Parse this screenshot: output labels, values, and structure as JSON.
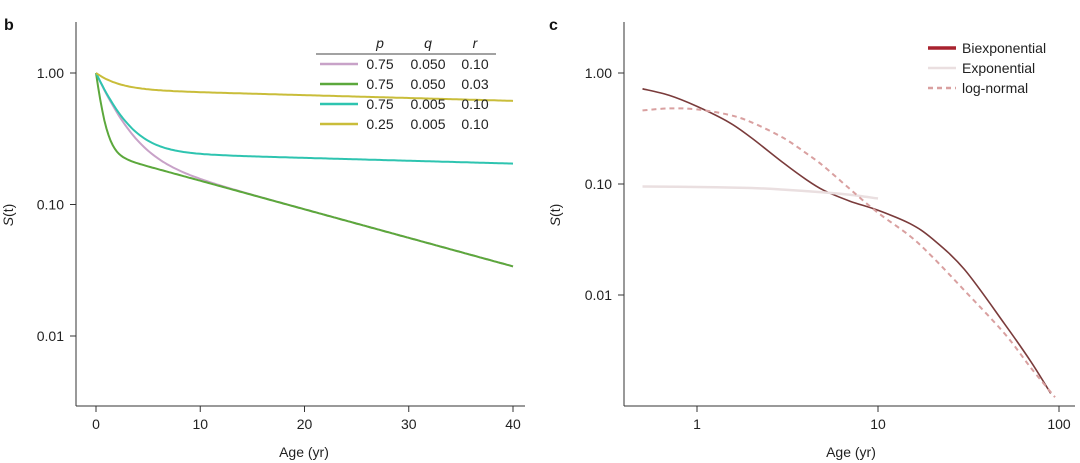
{
  "chart_data": [
    {
      "type": "line",
      "panel": "b",
      "title": "",
      "xlabel": "Age (yr)",
      "ylabel": "S(t)",
      "ylabel_italic_part": "S",
      "ylabel_rest": "(t)",
      "xlim": [
        0,
        40
      ],
      "ylim": [
        0.003,
        2.0
      ],
      "yscale": "log",
      "x_ticks": [
        0,
        10,
        20,
        30,
        40
      ],
      "x_tick_labels": [
        "0",
        "10",
        "20",
        "30",
        "40"
      ],
      "y_ticks": [
        1.0,
        0.1,
        0.01
      ],
      "y_tick_labels": [
        "1.00",
        "0.10",
        "0.01"
      ],
      "grid": false,
      "legend": {
        "placement": "top-right",
        "columns": [
          "p",
          "q",
          "r"
        ],
        "rows": [
          {
            "p": "0.75",
            "q": "0.050",
            "r": "0.10",
            "color": "#c8a2c8"
          },
          {
            "p": "0.75",
            "q": "0.050",
            "r": "0.03",
            "color": "#5ca83c"
          },
          {
            "p": "0.75",
            "q": "0.005",
            "r": "0.10",
            "color": "#2ec4b0"
          },
          {
            "p": "0.25",
            "q": "0.005",
            "r": "0.10",
            "color": "#c9bd3a"
          }
        ]
      },
      "series": [
        {
          "color": "#c8a2c8",
          "p": 0.75,
          "q": 0.05,
          "r": 0.1
        },
        {
          "color": "#5ca83c",
          "p": 0.75,
          "q": 0.05,
          "r": 0.03
        },
        {
          "color": "#2ec4b0",
          "p": 0.75,
          "q": 0.005,
          "r": 0.1
        },
        {
          "color": "#c9bd3a",
          "p": 0.25,
          "q": 0.005,
          "r": 0.1
        }
      ]
    },
    {
      "type": "line",
      "panel": "c",
      "title": "",
      "xlabel": "Age (yr)",
      "ylabel": "S(t)",
      "ylabel_italic_part": "S",
      "ylabel_rest": "(t)",
      "xlim": [
        0.4,
        120
      ],
      "ylim": [
        0.0008,
        2.0
      ],
      "xscale": "log",
      "yscale": "log",
      "x_ticks": [
        1,
        10,
        100
      ],
      "x_tick_labels": [
        "1",
        "10",
        "100"
      ],
      "y_ticks": [
        1.0,
        0.1,
        0.01
      ],
      "y_tick_labels": [
        "1.00",
        "0.10",
        "0.01"
      ],
      "grid": false,
      "legend": {
        "placement": "top-right",
        "entries": [
          {
            "name": "Biexponential",
            "color": "#a8222e",
            "style": "solid"
          },
          {
            "name": "Exponential",
            "color": "#eadfe0",
            "style": "solid"
          },
          {
            "name": "log-normal",
            "color": "#d9a0a0",
            "style": "dashed"
          }
        ]
      },
      "series": [
        {
          "name": "Biexponential",
          "color": "#7a3b3b",
          "style": "solid",
          "x": [
            0.5,
            0.7,
            1,
            1.5,
            2,
            3,
            4,
            5,
            7,
            10,
            15,
            20,
            30,
            50,
            70,
            90
          ],
          "y": [
            0.72,
            0.63,
            0.5,
            0.36,
            0.26,
            0.155,
            0.11,
            0.088,
            0.07,
            0.058,
            0.044,
            0.032,
            0.017,
            0.0055,
            0.0025,
            0.0013
          ]
        },
        {
          "name": "Exponential",
          "color": "#eadfe0",
          "style": "solid",
          "x": [
            0.5,
            1,
            2,
            3,
            5,
            7,
            10
          ],
          "y": [
            0.095,
            0.094,
            0.092,
            0.089,
            0.084,
            0.08,
            0.074
          ]
        },
        {
          "name": "log-normal",
          "color": "#d9a0a0",
          "style": "dashed",
          "x": [
            0.5,
            0.7,
            1,
            1.5,
            2,
            3,
            4,
            5,
            7,
            10,
            15,
            20,
            30,
            50,
            70,
            95
          ],
          "y": [
            0.46,
            0.48,
            0.47,
            0.42,
            0.36,
            0.26,
            0.19,
            0.145,
            0.09,
            0.055,
            0.034,
            0.022,
            0.011,
            0.0045,
            0.0022,
            0.0012
          ]
        }
      ]
    }
  ]
}
